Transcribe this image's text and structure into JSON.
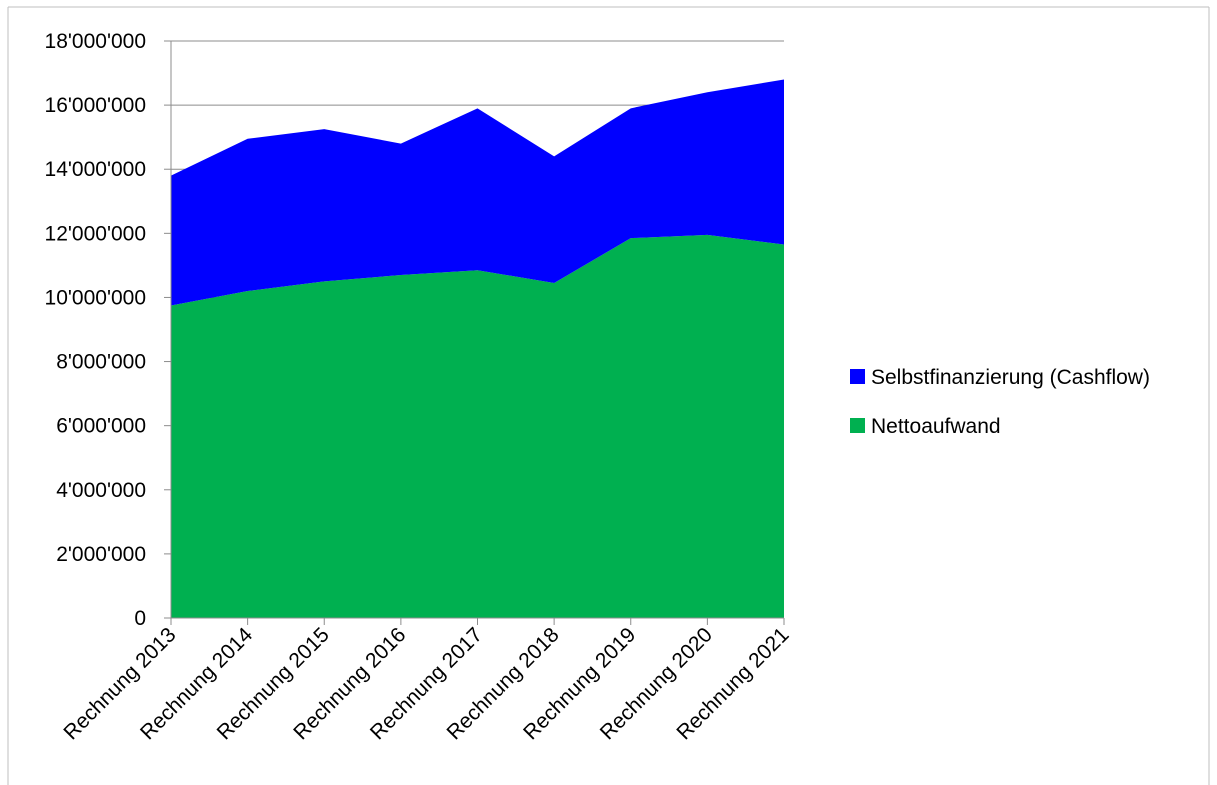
{
  "chart_data": {
    "type": "area",
    "stacked": true,
    "categories": [
      "Rechnung 2013",
      "Rechnung 2014",
      "Rechnung 2015",
      "Rechnung 2016",
      "Rechnung 2017",
      "Rechnung 2018",
      "Rechnung 2019",
      "Rechnung 2020",
      "Rechnung 2021"
    ],
    "series": [
      {
        "name": "Nettoaufwand",
        "color": "#00B050",
        "values": [
          9750000,
          10200000,
          10500000,
          10700000,
          10850000,
          10450000,
          11850000,
          11950000,
          11650000
        ]
      },
      {
        "name": "Selbstfinanzierung (Cashflow)",
        "color": "#0000FF",
        "values": [
          4050000,
          4750000,
          4750000,
          4100000,
          5050000,
          3950000,
          4050000,
          4450000,
          5150000
        ]
      }
    ],
    "ylim": [
      0,
      18000000
    ],
    "yticks": [
      0,
      2000000,
      4000000,
      6000000,
      8000000,
      10000000,
      12000000,
      14000000,
      16000000,
      18000000
    ],
    "ytick_labels": [
      "0",
      "2'000'000",
      "4'000'000",
      "6'000'000",
      "8'000'000",
      "10'000'000",
      "12'000'000",
      "14'000'000",
      "16'000'000",
      "18'000'000"
    ],
    "grid": true,
    "legend_position": "right",
    "legend_entries": [
      "Selbstfinanzierung (Cashflow)",
      "Nettoaufwand"
    ],
    "title": "",
    "xlabel": "",
    "ylabel": ""
  }
}
